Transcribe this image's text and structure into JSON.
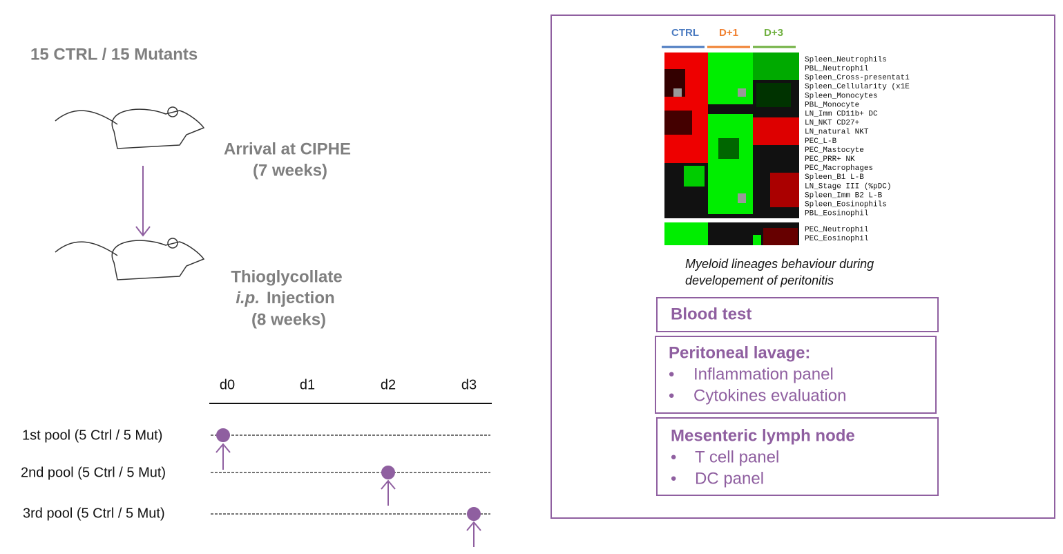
{
  "title": "15 CTRL / 15 Mutants",
  "steps": [
    {
      "lines": [
        "Arrival at CIPHE",
        "(7 weeks)"
      ]
    },
    {
      "lines": [
        "Thioglycollate",
        "i.p.",
        "Injection",
        "(8 weeks)"
      ]
    }
  ],
  "timeline": {
    "days": [
      "d0",
      "d1",
      "d2",
      "d3"
    ],
    "pools": [
      "1st  pool (5 Ctrl / 5 Mut)",
      "2nd pool (5 Ctrl / 5 Mut)",
      "3rd pool (5 Ctrl / 5 Mut)"
    ]
  },
  "heatmap": {
    "columns": [
      "CTRL",
      "D+1",
      "D+3"
    ],
    "rows": [
      "Spleen_Neutrophils",
      "PBL_Neutrophil",
      "Spleen_Cross-presentati",
      "Spleen_Cellularity (x1E",
      "Spleen_Monocytes",
      "PBL_Monocyte",
      "LN_Imm CD11b+ DC",
      "LN_NKT CD27+",
      "LN_natural NKT",
      "PEC_L-B",
      "PEC_Mastocyte",
      "PEC_PRR+ NK",
      "PEC_Macrophages",
      "Spleen_B1 L-B",
      "LN_Stage III (%pDC)",
      "Spleen_Imm B2 L-B",
      "Spleen_Eosinophils",
      "PBL_Eosinophil",
      "PEC_Neutrophil",
      "PEC_Eosinophil"
    ],
    "caption": [
      "Myeloid lineages behaviour during",
      "developement of peritonitis"
    ]
  },
  "boxes": [
    {
      "title": "Blood test",
      "items": []
    },
    {
      "title": "Peritoneal lavage:",
      "items": [
        "Inflammation panel",
        "Cytokines evaluation"
      ]
    },
    {
      "title": "Mesenteric lymph node",
      "items": [
        "T cell panel",
        "DC panel"
      ]
    }
  ]
}
